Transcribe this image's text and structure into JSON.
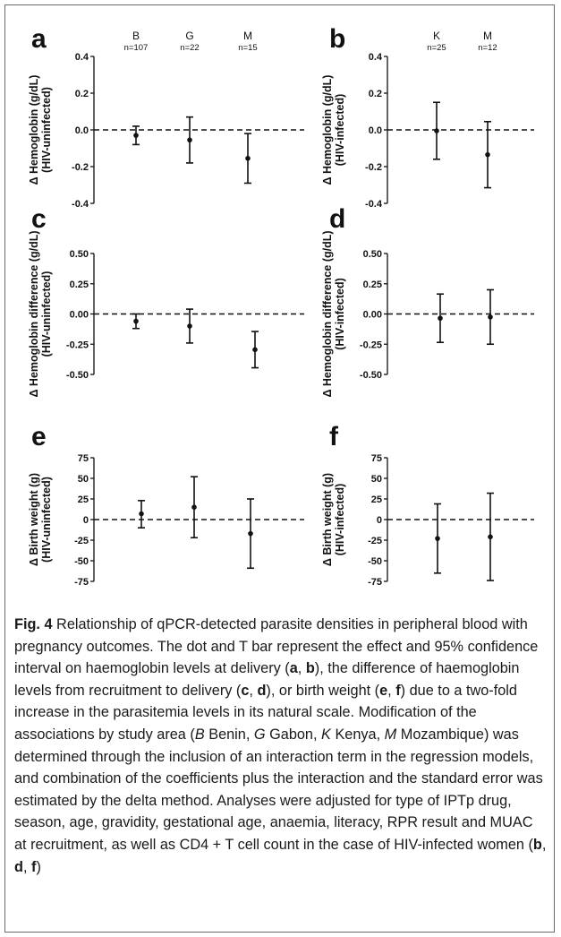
{
  "chart_data": [
    {
      "panel": "a",
      "type": "scatter",
      "error_bars": "95% CI",
      "groups": [
        {
          "letter": "B",
          "n": "n=107",
          "mean": -0.03,
          "lower": -0.08,
          "upper": 0.02
        },
        {
          "letter": "G",
          "n": "n=22",
          "mean": -0.055,
          "lower": -0.18,
          "upper": 0.07
        },
        {
          "letter": "M",
          "n": "n=15",
          "mean": -0.155,
          "lower": -0.29,
          "upper": -0.02
        }
      ],
      "ylabel_lines": [
        "Δ Hemoglobin (g/dL)",
        "(HIV-uninfected)"
      ],
      "ylim": [
        -0.4,
        0.4
      ],
      "yticks": [
        "0.4",
        "0.2",
        "0.0",
        "-0.2",
        "-0.4"
      ],
      "yticks_values": [
        0.4,
        0.2,
        0.0,
        -0.2,
        -0.4
      ],
      "reference_line": 0
    },
    {
      "panel": "b",
      "type": "scatter",
      "error_bars": "95% CI",
      "groups": [
        {
          "letter": "K",
          "n": "n=25",
          "mean": -0.005,
          "lower": -0.16,
          "upper": 0.15
        },
        {
          "letter": "M",
          "n": "n=12",
          "mean": -0.135,
          "lower": -0.315,
          "upper": 0.045
        }
      ],
      "ylabel_lines": [
        "Δ Hemoglobin (g/dL)",
        "(HIV-infected)"
      ],
      "ylim": [
        -0.4,
        0.4
      ],
      "yticks": [
        "0.4",
        "0.2",
        "0.0",
        "-0.2",
        "-0.4"
      ],
      "yticks_values": [
        0.4,
        0.2,
        0.0,
        -0.2,
        -0.4
      ],
      "reference_line": 0
    },
    {
      "panel": "c",
      "type": "scatter",
      "error_bars": "95% CI",
      "groups": [
        {
          "letter": "B",
          "n": "",
          "mean": -0.06,
          "lower": -0.12,
          "upper": 0.0
        },
        {
          "letter": "G",
          "n": "",
          "mean": -0.1,
          "lower": -0.24,
          "upper": 0.04
        },
        {
          "letter": "M",
          "n": "",
          "mean": -0.295,
          "lower": -0.445,
          "upper": -0.145
        }
      ],
      "ylabel_lines": [
        "Δ Hemoglobin difference (g/dL)",
        "(HIV-uninfected)"
      ],
      "ylim": [
        -0.5,
        0.5
      ],
      "yticks": [
        "0.50",
        "0.25",
        "0.00",
        "-0.25",
        "-0.50"
      ],
      "yticks_values": [
        0.5,
        0.25,
        0.0,
        -0.25,
        -0.5
      ],
      "reference_line": 0
    },
    {
      "panel": "d",
      "type": "scatter",
      "error_bars": "95% CI",
      "groups": [
        {
          "letter": "K",
          "n": "",
          "mean": -0.035,
          "lower": -0.235,
          "upper": 0.165
        },
        {
          "letter": "M",
          "n": "",
          "mean": -0.025,
          "lower": -0.25,
          "upper": 0.2
        }
      ],
      "ylabel_lines": [
        "Δ Hemoglobin difference (g/dL)",
        "(HIV-infected)"
      ],
      "ylim": [
        -0.5,
        0.5
      ],
      "yticks": [
        "0.50",
        "0.25",
        "0.00",
        "-0.25",
        "-0.50"
      ],
      "yticks_values": [
        0.5,
        0.25,
        0.0,
        -0.25,
        -0.5
      ],
      "reference_line": 0
    },
    {
      "panel": "e",
      "type": "scatter",
      "error_bars": "95% CI",
      "groups": [
        {
          "letter": "B",
          "n": "",
          "mean": 7,
          "lower": -10,
          "upper": 23
        },
        {
          "letter": "G",
          "n": "",
          "mean": 15,
          "lower": -22,
          "upper": 52
        },
        {
          "letter": "M",
          "n": "",
          "mean": -17,
          "lower": -59,
          "upper": 25
        }
      ],
      "ylabel_lines": [
        "Δ Birth weight (g)",
        "(HIV-uninfected)"
      ],
      "ylim": [
        -75,
        75
      ],
      "yticks": [
        "75",
        "50",
        "25",
        "0",
        "-25",
        "-50",
        "-75"
      ],
      "yticks_values": [
        75,
        50,
        25,
        0,
        -25,
        -50,
        -75
      ],
      "reference_line": 0
    },
    {
      "panel": "f",
      "type": "scatter",
      "error_bars": "95% CI",
      "groups": [
        {
          "letter": "K",
          "n": "",
          "mean": -23,
          "lower": -65,
          "upper": 19
        },
        {
          "letter": "M",
          "n": "",
          "mean": -21,
          "lower": -74,
          "upper": 32
        }
      ],
      "ylabel_lines": [
        "Δ Birth weight (g)",
        "(HIV-infected)"
      ],
      "ylim": [
        -75,
        75
      ],
      "yticks": [
        "75",
        "50",
        "25",
        "0",
        "-25",
        "-50",
        "-75"
      ],
      "yticks_values": [
        75,
        50,
        25,
        0,
        -25,
        -50,
        -75
      ],
      "reference_line": 0
    }
  ],
  "caption": {
    "label": "Fig. 4",
    "text": " Relationship of qPCR-detected parasite densities in peripheral blood with pregnancy outcomes. The dot and T bar represent the effect and 95% confidence interval on haemoglobin levels at delivery (",
    "p1": "a",
    "s1": ", ",
    "p2": "b",
    "t2": "), the difference of haemoglobin levels from recruitment to delivery (",
    "p3": "c",
    "s3": ", ",
    "p4": "d",
    "t4": "), or birth weight (",
    "p5": "e",
    "s5": ", ",
    "p6": "f",
    "t6": ") due to a two-fold increase in the parasitemia levels in its natural scale. Modification of the associations by study area (",
    "ab1": "B",
    "w1": " Benin, ",
    "ab2": "G",
    "w2": " Gabon, ",
    "ab3": "K",
    "w3": " Kenya, ",
    "ab4": "M",
    "w4": " Mozambique) was determined through the inclusion of an interaction term in the regression models, and combination of the coefficients plus the interaction and the standard error was estimated by the delta method. Analyses were adjusted for type of IPTp drug, season, age, gravidity, gestational age, anaemia, literacy, RPR result and MUAC at recruitment, as well as CD4 + T cell count in the case of HIV-infected women (",
    "p7": "b",
    "s7": ", ",
    "p8": "d",
    "s8": ", ",
    "p9": "f",
    "t9": ")"
  }
}
